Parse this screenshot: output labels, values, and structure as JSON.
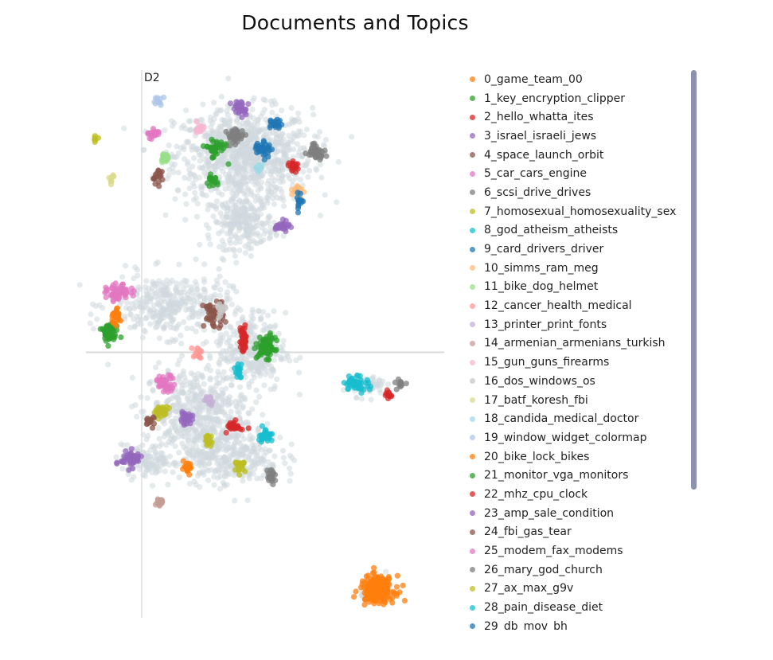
{
  "chart_data": {
    "type": "scatter",
    "title": "Documents and Topics",
    "ylabel": "D2",
    "xlabel": "",
    "xlim": [
      -8,
      16
    ],
    "ylim": [
      -12,
      12
    ],
    "grid": false,
    "legend_position": "right",
    "series": [
      {
        "name": "0_game_team_00",
        "color": "#ff7f0e",
        "clusters": [
          [
            11.1,
            -10.0,
            1.0,
            0.5,
            220
          ]
        ]
      },
      {
        "name": "1_key_encryption_clipper",
        "color": "#2ca02c",
        "clusters": [
          [
            4.0,
            0.2,
            0.5,
            0.4,
            90
          ],
          [
            -6.1,
            0.8,
            0.5,
            0.4,
            50
          ],
          [
            0.7,
            8.6,
            0.6,
            0.4,
            40
          ]
        ]
      },
      {
        "name": "2_hello_whatta_ites",
        "color": "#d62728",
        "clusters": [
          [
            2.5,
            0.5,
            0.2,
            0.5,
            40
          ],
          [
            1.9,
            -3.1,
            0.4,
            0.2,
            30
          ],
          [
            5.8,
            7.8,
            0.3,
            0.2,
            20
          ]
        ]
      },
      {
        "name": "3_israel_israeli_jews",
        "color": "#9467bd",
        "clusters": [
          [
            -4.7,
            -4.5,
            0.6,
            0.3,
            60
          ],
          [
            5.0,
            5.3,
            0.4,
            0.2,
            30
          ],
          [
            2.3,
            10.3,
            0.5,
            0.3,
            30
          ]
        ]
      },
      {
        "name": "4_space_launch_orbit",
        "color": "#8c564b",
        "clusters": [
          [
            0.6,
            1.6,
            0.6,
            0.5,
            60
          ],
          [
            -3.0,
            7.4,
            0.3,
            0.3,
            20
          ]
        ]
      },
      {
        "name": "5_car_cars_engine",
        "color": "#e377c2",
        "clusters": [
          [
            -5.5,
            2.5,
            0.7,
            0.3,
            60
          ],
          [
            -2.5,
            -1.3,
            0.6,
            0.3,
            40
          ]
        ]
      },
      {
        "name": "6_scsi_drive_drives",
        "color": "#7f7f7f",
        "clusters": [
          [
            7.2,
            8.5,
            0.5,
            0.3,
            40
          ],
          [
            2.0,
            9.1,
            0.5,
            0.3,
            40
          ],
          [
            4.3,
            -5.2,
            0.3,
            0.3,
            20
          ]
        ]
      },
      {
        "name": "7_homosexual_homosexuality_sex",
        "color": "#bcbd22",
        "clusters": [
          [
            -2.8,
            -2.5,
            0.4,
            0.2,
            30
          ],
          [
            0.3,
            -3.7,
            0.3,
            0.2,
            20
          ]
        ]
      },
      {
        "name": "8_god_atheism_atheists",
        "color": "#17becf",
        "clusters": [
          [
            9.8,
            -1.3,
            0.7,
            0.3,
            50
          ],
          [
            3.9,
            -3.5,
            0.4,
            0.3,
            30
          ]
        ]
      },
      {
        "name": "9_card_drivers_driver",
        "color": "#1f77b4",
        "clusters": [
          [
            3.8,
            8.6,
            0.5,
            0.3,
            40
          ],
          [
            4.5,
            9.6,
            0.4,
            0.2,
            20
          ]
        ]
      },
      {
        "name": "10_simms_ram_meg",
        "color": "#ffbb78",
        "clusters": [
          [
            6.0,
            6.8,
            0.3,
            0.3,
            20
          ]
        ]
      },
      {
        "name": "11_bike_dog_helmet",
        "color": "#98df8a",
        "clusters": [
          [
            -2.5,
            8.2,
            0.3,
            0.2,
            20
          ]
        ]
      },
      {
        "name": "12_cancer_health_medical",
        "color": "#ff9896",
        "clusters": [
          [
            -0.5,
            0.0,
            0.3,
            0.2,
            15
          ]
        ]
      },
      {
        "name": "13_printer_print_fonts",
        "color": "#c5b0d5",
        "clusters": [
          [
            0.3,
            -2.0,
            0.3,
            0.2,
            15
          ]
        ]
      },
      {
        "name": "14_armenian_armenians_turkish",
        "color": "#c49c94",
        "clusters": [
          [
            -2.9,
            -6.3,
            0.2,
            0.2,
            15
          ]
        ]
      },
      {
        "name": "15_gun_guns_firearms",
        "color": "#f7b6d2",
        "clusters": [
          [
            -0.3,
            9.4,
            0.3,
            0.2,
            15
          ]
        ]
      },
      {
        "name": "16_dos_windows_os",
        "color": "#c7c7c7",
        "clusters": [
          [
            1.0,
            1.8,
            0.3,
            0.3,
            15
          ]
        ]
      },
      {
        "name": "17_batf_koresh_fbi",
        "color": "#dbdb8d",
        "clusters": [
          [
            -5.9,
            7.3,
            0.2,
            0.2,
            10
          ]
        ]
      },
      {
        "name": "18_candida_medical_doctor",
        "color": "#9edae5",
        "clusters": [
          [
            3.5,
            7.8,
            0.3,
            0.2,
            12
          ]
        ]
      },
      {
        "name": "19_window_widget_colormap",
        "color": "#aec7e8",
        "clusters": [
          [
            -3.0,
            10.6,
            0.3,
            0.2,
            12
          ]
        ]
      },
      {
        "name": "20_bike_lock_bikes",
        "color": "#ff7f0e",
        "clusters": [
          [
            -5.7,
            1.5,
            0.3,
            0.3,
            30
          ],
          [
            -1.1,
            -4.9,
            0.3,
            0.2,
            20
          ]
        ]
      },
      {
        "name": "21_monitor_vga_monitors",
        "color": "#2ca02c",
        "clusters": [
          [
            0.5,
            7.2,
            0.3,
            0.2,
            20
          ]
        ]
      },
      {
        "name": "22_mhz_cpu_clock",
        "color": "#d62728",
        "clusters": [
          [
            11.7,
            -1.8,
            0.3,
            0.2,
            12
          ]
        ]
      },
      {
        "name": "23_amp_sale_condition",
        "color": "#9467bd",
        "clusters": [
          [
            -1.2,
            -2.8,
            0.4,
            0.2,
            25
          ]
        ]
      },
      {
        "name": "24_fbi_gas_tear",
        "color": "#8c564b",
        "clusters": [
          [
            -3.5,
            -2.9,
            0.3,
            0.2,
            15
          ]
        ]
      },
      {
        "name": "25_modem_fax_modems",
        "color": "#e377c2",
        "clusters": [
          [
            -3.3,
            9.2,
            0.4,
            0.2,
            25
          ]
        ]
      },
      {
        "name": "26_mary_god_church",
        "color": "#7f7f7f",
        "clusters": [
          [
            12.6,
            -1.3,
            0.3,
            0.2,
            12
          ]
        ]
      },
      {
        "name": "27_ax_max_g9v",
        "color": "#bcbd22",
        "clusters": [
          [
            -7.0,
            9.0,
            0.2,
            0.1,
            6
          ],
          [
            2.3,
            -4.8,
            0.3,
            0.2,
            20
          ]
        ]
      },
      {
        "name": "28_pain_disease_diet",
        "color": "#17becf",
        "clusters": [
          [
            2.2,
            -0.8,
            0.2,
            0.3,
            20
          ]
        ]
      },
      {
        "name": "29_db_mov_bh",
        "color": "#1f77b4",
        "clusters": [
          [
            6.1,
            6.3,
            0.2,
            0.4,
            15
          ]
        ]
      }
    ],
    "background_clusters": [
      [
        2.5,
        8.3,
        4.0,
        1.8,
        900
      ],
      [
        2.5,
        5.5,
        1.8,
        1.0,
        250
      ],
      [
        -2.2,
        2.0,
        3.5,
        1.2,
        350
      ],
      [
        3.0,
        0.0,
        2.0,
        1.5,
        300
      ],
      [
        -0.6,
        -2.6,
        3.0,
        1.8,
        500
      ],
      [
        1.8,
        -4.4,
        2.8,
        1.1,
        300
      ],
      [
        -3.8,
        -4.6,
        1.4,
        0.6,
        120
      ],
      [
        10.5,
        -1.4,
        1.0,
        0.4,
        70
      ],
      [
        11.2,
        -10.0,
        1.0,
        0.5,
        60
      ]
    ]
  }
}
